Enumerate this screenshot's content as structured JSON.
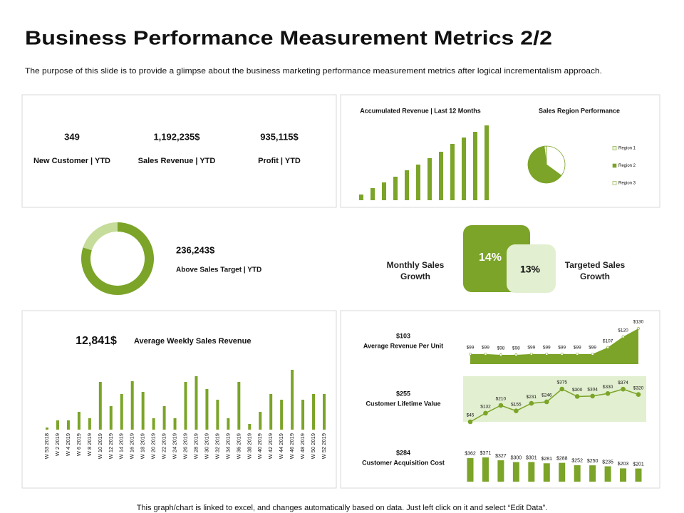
{
  "header": {
    "title": "Business Performance Measurement Metrics 2/2",
    "subtitle": "The purpose of this slide is to provide a glimpse about the business marketing performance measurement metrics after logical incrementalism approach."
  },
  "kpis": [
    {
      "value": "349",
      "label": "New Customer | YTD"
    },
    {
      "value": "1,192,235$",
      "label": "Sales Revenue | YTD"
    },
    {
      "value": "935,115$",
      "label": "Profit | YTD"
    }
  ],
  "target": {
    "value": "236,243$",
    "label": "Above Sales Target | YTD"
  },
  "growth": [
    {
      "label": "Monthly Sales Growth",
      "value": "14%"
    },
    {
      "label": "Targeted Sales Growth",
      "value": "13%"
    }
  ],
  "footer": "This graph/chart is linked to excel, and changes automatically based on data. Just left click on it and select “Edit Data”.",
  "chart_data": [
    {
      "type": "bar",
      "title": "Accumulated Revenue | Last 12 Months",
      "categories": [
        null,
        null,
        null,
        null,
        null,
        null,
        null,
        null,
        null,
        null,
        null,
        null
      ],
      "values": [
        8,
        17,
        25,
        33,
        42,
        50,
        59,
        68,
        79,
        88,
        96,
        105
      ],
      "color": "#7ba428"
    },
    {
      "type": "pie",
      "title": "Sales Region Performance",
      "categories": [
        "Region 1",
        "Region 2",
        "Region 3"
      ],
      "values": [
        2,
        63,
        35
      ],
      "colors": [
        "#eef5e2",
        "#7ba428",
        "#ffffff"
      ],
      "legend": "right"
    },
    {
      "type": "donut",
      "values": [
        80,
        20
      ],
      "colors": [
        "#7ba428",
        "#c5dc9a"
      ]
    },
    {
      "type": "bar",
      "headline": "12,841$",
      "title": "Average Weekly Sales Revenue",
      "categories": [
        "W 53 2018",
        "W 2 2019",
        "W 4 2019",
        "W 6 2019",
        "W 8 2019",
        "W 10 2019",
        "W 12 2019",
        "W 14 2019",
        "W 16 2019",
        "W 18 2019",
        "W 20 2019",
        "W 22 2019",
        "W 24 2019",
        "W 26 2019",
        "W 28 2019",
        "W 30 2019",
        "W 32 2019",
        "W 34 2019",
        "W 36 2019",
        "W 38 2019",
        "W 40 2019",
        "W 42 2019",
        "W 44 2019",
        "W 46 2019",
        "W 48 2019",
        "W 50 2019",
        "W 52 2019"
      ],
      "values": [
        3,
        13,
        13,
        25,
        16,
        67,
        33,
        50,
        68,
        53,
        16,
        33,
        16,
        67,
        75,
        57,
        42,
        16,
        67,
        8,
        25,
        50,
        42,
        84,
        42,
        50,
        50
      ],
      "color": "#7ba428"
    },
    {
      "type": "area",
      "headline": "$103",
      "title": "Average Revenue Per Unit",
      "values": [
        99,
        99,
        98,
        98,
        99,
        99,
        99,
        99,
        99,
        107,
        120,
        130
      ],
      "value_labels": [
        "$99",
        "$99",
        "$98",
        "$98",
        "$99",
        "$99",
        "$99",
        "$99",
        "$99",
        "$107",
        "$120",
        "$130"
      ],
      "color": "#7ba428"
    },
    {
      "type": "line",
      "headline": "$255",
      "title": "Customer Lifetime Value",
      "values": [
        45,
        132,
        210,
        155,
        231,
        246,
        375,
        300,
        304,
        330,
        374,
        320
      ],
      "value_labels": [
        "$45",
        "$132",
        "$210",
        "$155",
        "$231",
        "$246",
        "$375",
        "$300",
        "$304",
        "$330",
        "$374",
        "$320"
      ],
      "color": "#7ba428",
      "background": "#e2efd0"
    },
    {
      "type": "bar",
      "headline": "$284",
      "title": "Customer Acquisition Cost",
      "values": [
        362,
        371,
        327,
        300,
        301,
        281,
        288,
        252,
        250,
        235,
        203,
        201
      ],
      "value_labels": [
        "$362",
        "$371",
        "$327",
        "$300",
        "$301",
        "$281",
        "$288",
        "$252",
        "$250",
        "$235",
        "$203",
        "$201"
      ],
      "color": "#7ba428"
    }
  ]
}
